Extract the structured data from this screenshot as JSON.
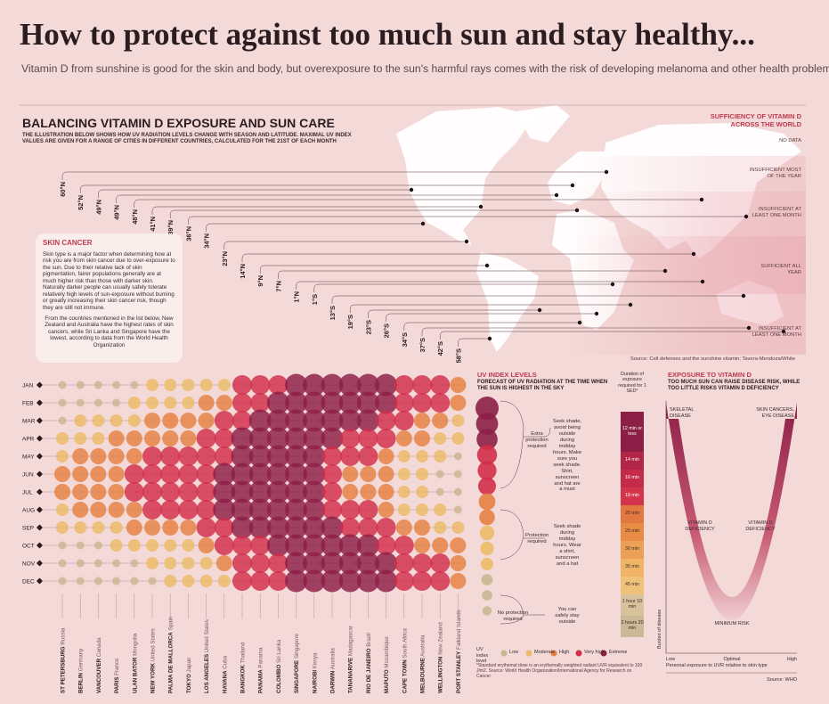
{
  "header": {
    "title": "How to protect against too much sun and stay healthy...",
    "subtitle": "Vitamin D from sunshine is good for the skin and body, but overexposure to the sun's harmful rays comes with the risk of developing melanoma and other health problems"
  },
  "section": {
    "title": "BALANCING VITAMIN D EXPOSURE AND SUN CARE",
    "description": "THE ILLUSTRATION BELOW SHOWS HOW UV RADIATION LEVELS CHANGE WITH SEASON AND LATITUDE. MAXIMAL UV INDEX VALUES ARE GIVEN FOR A RANGE OF CITIES IN DIFFERENT COUNTRIES, CALCULATED FOR THE 21ST OF EACH MONTH"
  },
  "map": {
    "title": "SUFFICIENCY OF VITAMIN D ACROSS THE WORLD",
    "legend": [
      "NO DATA",
      "INSUFFICIENT MOST OF THE YEAR",
      "INSUFFICIENT AT LEAST ONE MONTH",
      "SUFFICIENT ALL YEAR",
      "INSUFFICIENT AT LEAST ONE MONTH"
    ],
    "source": "Source: Cell defenses and the sunshine vitamin; Tavera-Mendoza/White"
  },
  "skin_cancer": {
    "title": "SKIN CANCER",
    "paragraphs": [
      "Skin type is a major factor when determining how at risk you are from skin cancer due to over-exposure to the sun. Due to their relative lack of skin pigmentation, fairer populations generally are at much higher risk than those with darker skin. Naturally darker people can usually safely tolerate relatively high levels of sun-exposure without burning or greatly increasing their skin cancer risk, though they are still not immune.",
      "From the countries mentioned in the list below, New Zealand and Australia have the highest rates of skin cancers, while Sri Lanka and Singapore have the lowest, according to data from the World Health Organization"
    ]
  },
  "cities": [
    {
      "name": "ST PETERSBURG",
      "country": "Russia",
      "latitude": "60°N"
    },
    {
      "name": "BERLIN",
      "country": "Germany",
      "latitude": "52°N"
    },
    {
      "name": "VANCOUVER",
      "country": "Canada",
      "latitude": "49°N"
    },
    {
      "name": "PARIS",
      "country": "France",
      "latitude": "49°N"
    },
    {
      "name": "ULAN BATOR",
      "country": "Mongolia",
      "latitude": "48°N"
    },
    {
      "name": "NEW YORK",
      "country": "United States",
      "latitude": "41°N"
    },
    {
      "name": "PALMA DE MALLORCA",
      "country": "Spain",
      "latitude": "39°N"
    },
    {
      "name": "TOKYO",
      "country": "Japan",
      "latitude": "36°N"
    },
    {
      "name": "LOS ANGELES",
      "country": "United States",
      "latitude": "34°N"
    },
    {
      "name": "HAVANA",
      "country": "Cuba",
      "latitude": "23°N"
    },
    {
      "name": "BANGKOK",
      "country": "Thailand",
      "latitude": "14°N"
    },
    {
      "name": "PANAMA",
      "country": "Panama",
      "latitude": "9°N"
    },
    {
      "name": "COLOMBO",
      "country": "Sri Lanka",
      "latitude": "7°N"
    },
    {
      "name": "SINGAPORE",
      "country": "Singapore",
      "latitude": "1°N"
    },
    {
      "name": "NAIROBI",
      "country": "Kenya",
      "latitude": "1°S"
    },
    {
      "name": "DARWIN",
      "country": "Australia",
      "latitude": "13°S"
    },
    {
      "name": "TANANARIVE",
      "country": "Madagascar",
      "latitude": "19°S"
    },
    {
      "name": "RIO DE JANEIRO",
      "country": "Brazil",
      "latitude": "23°S"
    },
    {
      "name": "MAPUTO",
      "country": "Mozambique",
      "latitude": "26°S"
    },
    {
      "name": "CAPE TOWN",
      "country": "South Africa",
      "latitude": "34°S"
    },
    {
      "name": "MELBOURNE",
      "country": "Australia",
      "latitude": "37°S"
    },
    {
      "name": "WELLINGTON",
      "country": "New Zealand",
      "latitude": "42°S"
    },
    {
      "name": "PORT STANLEY",
      "country": "Falkland Islands",
      "latitude": "58°S"
    }
  ],
  "months": [
    "JAN",
    "FEB",
    "MAR",
    "APR",
    "MAY",
    "JUN",
    "JUL",
    "AUG",
    "SEP",
    "OCT",
    "NOV",
    "DEC"
  ],
  "uv_grid": [
    [
      1,
      1,
      1,
      1,
      1,
      2,
      2,
      2,
      2,
      2,
      4,
      4,
      4,
      5,
      5,
      5,
      5,
      5,
      5,
      4,
      4,
      4,
      3
    ],
    [
      1,
      1,
      1,
      1,
      2,
      2,
      2,
      2,
      3,
      3,
      4,
      4,
      5,
      5,
      5,
      5,
      5,
      5,
      5,
      4,
      4,
      4,
      3
    ],
    [
      1,
      2,
      2,
      2,
      2,
      3,
      3,
      3,
      3,
      4,
      4,
      5,
      5,
      5,
      5,
      5,
      5,
      5,
      4,
      4,
      3,
      3,
      2
    ],
    [
      2,
      2,
      2,
      3,
      3,
      3,
      3,
      3,
      4,
      4,
      5,
      5,
      5,
      5,
      5,
      5,
      4,
      4,
      4,
      3,
      3,
      2,
      2
    ],
    [
      2,
      3,
      3,
      3,
      3,
      4,
      4,
      4,
      4,
      4,
      5,
      5,
      5,
      5,
      5,
      4,
      4,
      4,
      3,
      2,
      2,
      2,
      1
    ],
    [
      3,
      3,
      3,
      3,
      4,
      4,
      4,
      4,
      4,
      5,
      5,
      5,
      5,
      5,
      5,
      4,
      3,
      3,
      3,
      2,
      2,
      1,
      1
    ],
    [
      3,
      3,
      3,
      3,
      4,
      4,
      4,
      4,
      4,
      5,
      5,
      5,
      5,
      5,
      5,
      4,
      3,
      3,
      3,
      2,
      2,
      1,
      1
    ],
    [
      2,
      3,
      3,
      3,
      3,
      4,
      4,
      4,
      4,
      5,
      5,
      5,
      5,
      5,
      5,
      4,
      4,
      4,
      3,
      2,
      2,
      2,
      1
    ],
    [
      2,
      2,
      2,
      2,
      3,
      3,
      3,
      3,
      4,
      4,
      5,
      5,
      5,
      5,
      5,
      5,
      4,
      4,
      4,
      3,
      3,
      2,
      2
    ],
    [
      1,
      1,
      1,
      2,
      2,
      2,
      2,
      2,
      3,
      4,
      4,
      4,
      5,
      5,
      5,
      5,
      5,
      5,
      4,
      4,
      3,
      3,
      3
    ],
    [
      1,
      1,
      1,
      1,
      1,
      2,
      2,
      2,
      2,
      3,
      4,
      4,
      4,
      5,
      5,
      5,
      5,
      5,
      5,
      4,
      4,
      4,
      3
    ],
    [
      1,
      1,
      1,
      1,
      1,
      1,
      2,
      2,
      2,
      2,
      4,
      4,
      4,
      5,
      5,
      5,
      5,
      5,
      5,
      4,
      4,
      4,
      3
    ]
  ],
  "uv_levels": {
    "title": "UV index level",
    "levels": [
      {
        "name": "Low",
        "color": "#c9b692"
      },
      {
        "name": "Moderate",
        "color": "#ecbb68"
      },
      {
        "name": "High",
        "color": "#e68142"
      },
      {
        "name": "Very high",
        "color": "#d22d4a"
      },
      {
        "name": "Extreme",
        "color": "#8c1f46"
      }
    ]
  },
  "uv_panel": {
    "title": "UV INDEX LEVELS",
    "subtitle": "FORECAST OF UV RADIATION AT THE TIME WHEN THE SUN IS HIGHEST IN THE SKY",
    "circles": [
      5,
      5,
      5,
      4,
      4,
      4,
      3,
      3,
      2,
      2,
      2,
      1,
      1,
      1
    ],
    "notes": [
      {
        "label": "Extra protection required",
        "advice": "Seek shade, avoid being outside during midday hours. Make sure you seek shade. Shirt, sunscreen and hat are a must"
      },
      {
        "label": "Protection required",
        "advice": "Seek shade during midday hours. Wear a shirt, sunscreen and a hat"
      },
      {
        "label": "No protection required",
        "advice": "You can safely stay outside"
      }
    ],
    "duration_title": "Duration of exposure required for 1 SED*",
    "durations": [
      {
        "label": "12 min or less",
        "color": "#8c1f46"
      },
      {
        "label": "14 min",
        "color": "#b02548"
      },
      {
        "label": "16 min",
        "color": "#c42a4a"
      },
      {
        "label": "18 min",
        "color": "#d4344c"
      },
      {
        "label": "20 min",
        "color": "#e27740"
      },
      {
        "label": "25 min",
        "color": "#e88b45"
      },
      {
        "label": "30 min",
        "color": "#eca056"
      },
      {
        "label": "35 min",
        "color": "#efb466"
      },
      {
        "label": "45 min",
        "color": "#efc27a"
      },
      {
        "label": "1 hour 10 min",
        "color": "#d8c29c"
      },
      {
        "label": "2 hours 20 min",
        "color": "#cbb896"
      }
    ],
    "footnote": "*Standard erythemal dose is an erythemally weighted radiant UVR equivalent to 100 J/m2. Source: World Health Organization/International Agency for Research on Cancer"
  },
  "exposure": {
    "title": "EXPOSURE TO VITAMIN D",
    "subtitle": "TOO MUCH SUN CAN RAISE DISEASE RISK, WHILE TOO LITTLE RISKS VITAMIN D DEFICIENCY",
    "left_risk": "SKELETAL DISEASE",
    "right_risk": "SKIN CANCERS, EYE DISEASE",
    "deficiency_left": "VITAMIN D DEFICIENCY",
    "deficiency_right": "VITAMIN D DEFICIENCY",
    "minimum": "MINIMUM RISK",
    "y_label": "Burden of disease",
    "x_ticks": [
      "Low",
      "Optimal",
      "High"
    ],
    "x_label": "Personal exposure to UVR relative to skin type",
    "source": "Source: WHO"
  }
}
